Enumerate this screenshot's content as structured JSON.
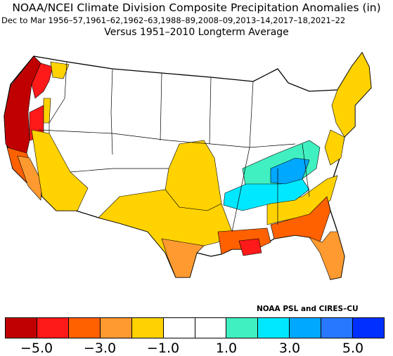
{
  "header": {
    "title": "NOAA/NCEI Climate Division Composite Precipitation Anomalies (in)",
    "period": "Dec to Mar  1956–57,1961–62,1962–63,1988–89,2008–09,2013–14,2017–18,2021–22",
    "baseline": "Versus 1951–2010 Longterm Average"
  },
  "credit": "NOAA PSL and CIRES–CU",
  "colorbar": {
    "colors": [
      "#c00000",
      "#ff1a1a",
      "#ff6000",
      "#ff9a30",
      "#ffd200",
      "#ffffff",
      "#ffffff",
      "#40f0c0",
      "#00e8ff",
      "#00a8ff",
      "#2878ff",
      "#0030ff"
    ],
    "labels": [
      "−5.0",
      "−3.0",
      "−1.0",
      "1.0",
      "3.0",
      "5.0"
    ]
  },
  "map": {
    "regions": [
      {
        "name": "pacific-nw-coast",
        "level": -5
      },
      {
        "name": "northern-california-coast",
        "level": -5
      },
      {
        "name": "western-washington",
        "level": -4
      },
      {
        "name": "western-oregon",
        "level": -4
      },
      {
        "name": "central-california",
        "level": -3
      },
      {
        "name": "southern-california",
        "level": -2
      },
      {
        "name": "great-basin-southwest",
        "level": -1
      },
      {
        "name": "kansas-oklahoma",
        "level": -1
      },
      {
        "name": "texas",
        "level": -1
      },
      {
        "name": "texas-gulf-coast",
        "level": -2
      },
      {
        "name": "louisiana-mississippi-coast",
        "level": -3
      },
      {
        "name": "gulf-coast-spot",
        "level": -4
      },
      {
        "name": "georgia-carolinas-coast",
        "level": -3
      },
      {
        "name": "florida",
        "level": -2
      },
      {
        "name": "southeast-interior",
        "level": -1
      },
      {
        "name": "northeast",
        "level": -1
      },
      {
        "name": "tennessee-valley",
        "level": 1
      },
      {
        "name": "mid-south",
        "level": 2
      },
      {
        "name": "appalachians",
        "level": 3
      }
    ]
  }
}
